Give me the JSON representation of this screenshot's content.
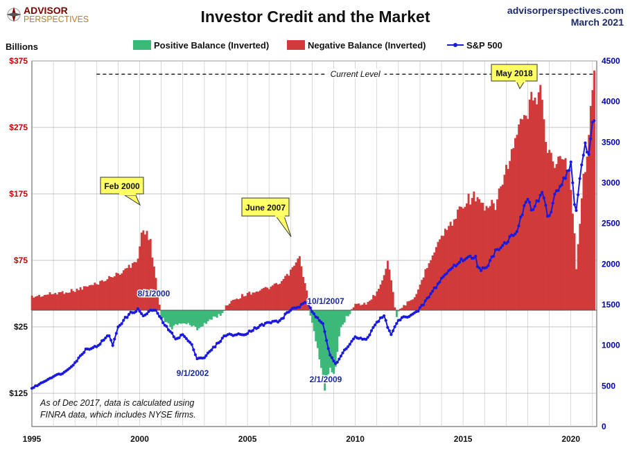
{
  "header": {
    "title": "Investor Credit and the Market",
    "logo_line1": "ADVISOR",
    "logo_line2": "PERSPECTIVES",
    "site": "advisorperspectives.com",
    "date": "March 2021"
  },
  "colors": {
    "positive": "#3cb878",
    "negative": "#d03a3a",
    "sp500": "#1a1adc",
    "left_axis_red": "#cc0000",
    "right_axis_blue": "#0000aa"
  },
  "chart_data": {
    "type": "bar",
    "title": "Investor Credit and the Market",
    "left_axis": {
      "label": "Billions",
      "ticks": [
        {
          "value": -375,
          "label": "$375",
          "color": "red"
        },
        {
          "value": -275,
          "label": "$275",
          "color": "red"
        },
        {
          "value": -175,
          "label": "$175",
          "color": "red"
        },
        {
          "value": -75,
          "label": "$75",
          "color": "red"
        },
        {
          "value": 25,
          "label": "$25",
          "color": "black"
        },
        {
          "value": 125,
          "label": "$125",
          "color": "black"
        }
      ],
      "range": [
        -375,
        175
      ],
      "inverted": true
    },
    "right_axis": {
      "ticks": [
        4500,
        4000,
        3500,
        3000,
        2500,
        2000,
        1500,
        1000,
        500,
        0
      ],
      "range": [
        0,
        4500
      ]
    },
    "x_axis": {
      "ticks": [
        "1995",
        "2000",
        "2005",
        "2010",
        "2015",
        "2020"
      ],
      "range": [
        1995,
        2021.2
      ]
    },
    "legend": [
      {
        "name": "Positive Balance (Inverted)",
        "kind": "bar",
        "color": "#3cb878"
      },
      {
        "name": "Negative Balance (Inverted)",
        "kind": "bar",
        "color": "#d03a3a"
      },
      {
        "name": "S&P 500",
        "kind": "line",
        "color": "#1a1adc"
      }
    ],
    "legend_position": "top-center",
    "grid": true,
    "balance_anchors": [
      [
        1995.0,
        -20
      ],
      [
        1996.0,
        -25
      ],
      [
        1997.0,
        -30
      ],
      [
        1998.0,
        -40
      ],
      [
        1999.0,
        -55
      ],
      [
        1999.5,
        -65
      ],
      [
        1999.9,
        -75
      ],
      [
        2000.15,
        -128
      ],
      [
        2000.5,
        -102
      ],
      [
        2000.75,
        -48
      ],
      [
        2001.0,
        12
      ],
      [
        2001.5,
        26
      ],
      [
        2002.0,
        18
      ],
      [
        2002.7,
        28
      ],
      [
        2003.0,
        20
      ],
      [
        2003.8,
        5
      ],
      [
        2004.2,
        -14
      ],
      [
        2005.0,
        -25
      ],
      [
        2006.0,
        -34
      ],
      [
        2006.5,
        -40
      ],
      [
        2007.0,
        -58
      ],
      [
        2007.4,
        -80
      ],
      [
        2007.75,
        -28
      ],
      [
        2007.95,
        12
      ],
      [
        2008.3,
        68
      ],
      [
        2008.6,
        120
      ],
      [
        2008.85,
        80
      ],
      [
        2009.0,
        100
      ],
      [
        2009.3,
        30
      ],
      [
        2009.6,
        10
      ],
      [
        2010.0,
        -8
      ],
      [
        2010.5,
        -10
      ],
      [
        2010.9,
        -22
      ],
      [
        2011.3,
        -50
      ],
      [
        2011.5,
        -75
      ],
      [
        2011.7,
        -40
      ],
      [
        2011.9,
        10
      ],
      [
        2012.2,
        -8
      ],
      [
        2012.7,
        -14
      ],
      [
        2013.0,
        -38
      ],
      [
        2013.5,
        -80
      ],
      [
        2014.0,
        -112
      ],
      [
        2014.5,
        -132
      ],
      [
        2015.0,
        -162
      ],
      [
        2015.5,
        -172
      ],
      [
        2016.0,
        -150
      ],
      [
        2016.5,
        -160
      ],
      [
        2017.0,
        -210
      ],
      [
        2017.5,
        -262
      ],
      [
        2018.0,
        -298
      ],
      [
        2018.4,
        -330
      ],
      [
        2018.7,
        -318
      ],
      [
        2018.9,
        -240
      ],
      [
        2019.3,
        -222
      ],
      [
        2019.7,
        -228
      ],
      [
        2019.95,
        -200
      ],
      [
        2020.15,
        -130
      ],
      [
        2020.25,
        -62
      ],
      [
        2020.5,
        -172
      ],
      [
        2020.8,
        -258
      ],
      [
        2021.1,
        -350
      ]
    ],
    "sp500_anchors": [
      [
        1995.0,
        470
      ],
      [
        1995.5,
        545
      ],
      [
        1996.0,
        620
      ],
      [
        1996.5,
        665
      ],
      [
        1997.0,
        785
      ],
      [
        1997.5,
        950
      ],
      [
        1998.0,
        985
      ],
      [
        1998.6,
        1130
      ],
      [
        1998.75,
        990
      ],
      [
        1999.0,
        1230
      ],
      [
        1999.5,
        1380
      ],
      [
        1999.9,
        1440
      ],
      [
        2000.2,
        1360
      ],
      [
        2000.6,
        1440
      ],
      [
        2000.85,
        1395
      ],
      [
        2001.0,
        1320
      ],
      [
        2001.3,
        1200
      ],
      [
        2001.7,
        1080
      ],
      [
        2002.0,
        1130
      ],
      [
        2002.4,
        1010
      ],
      [
        2002.67,
        840
      ],
      [
        2003.0,
        850
      ],
      [
        2003.5,
        990
      ],
      [
        2004.0,
        1130
      ],
      [
        2004.8,
        1130
      ],
      [
        2005.5,
        1230
      ],
      [
        2006.0,
        1280
      ],
      [
        2006.5,
        1300
      ],
      [
        2007.0,
        1440
      ],
      [
        2007.6,
        1500
      ],
      [
        2007.75,
        1530
      ],
      [
        2008.0,
        1400
      ],
      [
        2008.5,
        1280
      ],
      [
        2008.8,
        900
      ],
      [
        2009.1,
        760
      ],
      [
        2009.5,
        940
      ],
      [
        2010.0,
        1100
      ],
      [
        2010.5,
        1060
      ],
      [
        2011.0,
        1290
      ],
      [
        2011.33,
        1360
      ],
      [
        2011.65,
        1120
      ],
      [
        2012.0,
        1310
      ],
      [
        2012.5,
        1370
      ],
      [
        2012.9,
        1410
      ],
      [
        2013.5,
        1630
      ],
      [
        2014.0,
        1820
      ],
      [
        2014.5,
        1960
      ],
      [
        2015.0,
        2060
      ],
      [
        2015.6,
        2100
      ],
      [
        2015.7,
        1940
      ],
      [
        2016.1,
        1940
      ],
      [
        2016.5,
        2170
      ],
      [
        2017.0,
        2270
      ],
      [
        2017.5,
        2420
      ],
      [
        2018.0,
        2820
      ],
      [
        2018.2,
        2640
      ],
      [
        2018.7,
        2900
      ],
      [
        2018.95,
        2510
      ],
      [
        2019.3,
        2900
      ],
      [
        2019.6,
        3000
      ],
      [
        2020.0,
        3230
      ],
      [
        2020.22,
        2590
      ],
      [
        2020.45,
        3100
      ],
      [
        2020.67,
        3500
      ],
      [
        2020.8,
        3270
      ],
      [
        2021.0,
        3750
      ],
      [
        2021.1,
        3820
      ]
    ]
  },
  "annotations": {
    "current_level": "Current Level",
    "callout_feb2000": "Feb 2000",
    "callout_june2007": "June 2007",
    "callout_may2018": "May 2018",
    "label_8_1_2000": "8/1/2000",
    "label_9_1_2002": "9/1/2002",
    "label_10_1_2007": "10/1/2007",
    "label_2_1_2009": "2/1/2009",
    "note_line1": "As of Dec 2017,  data is calculated using",
    "note_line2": "FINRA data, which includes NYSE firms."
  }
}
